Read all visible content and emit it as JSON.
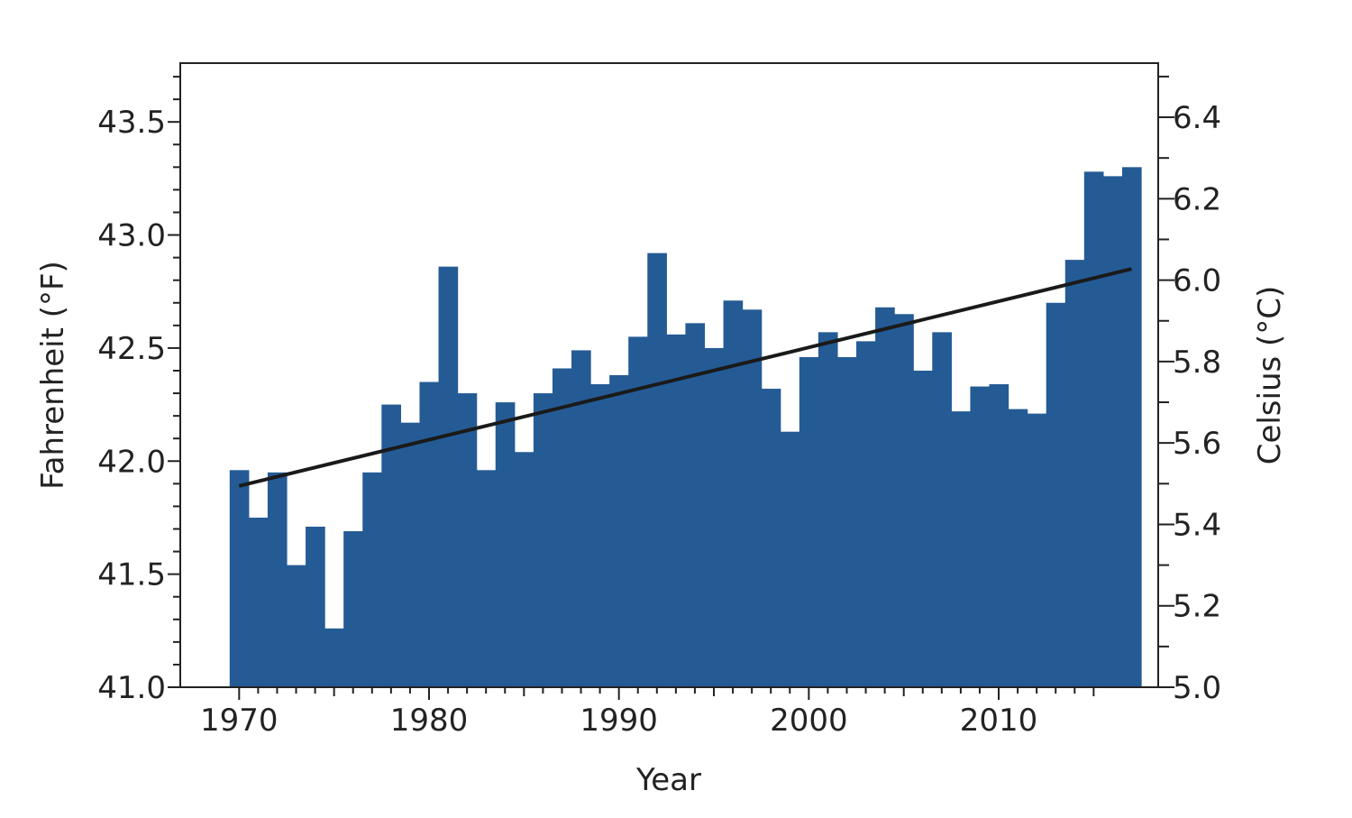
{
  "chart_data": {
    "type": "bar",
    "xlabel": "Year",
    "ylabel": "Fahrenheit  (°F)",
    "y2label": "Celsius  (°C)",
    "bar_color": "#245b95",
    "trend_color": "#1a1a1a",
    "x_tick_labels": [
      "1970",
      "1980",
      "1990",
      "2000",
      "2010"
    ],
    "x_ticks": [
      1970,
      1980,
      1990,
      2000,
      2010
    ],
    "xlim": [
      1966.9,
      2018.4
    ],
    "y_tick_labels": [
      "41.0",
      "41.5",
      "42.0",
      "42.5",
      "43.0",
      "43.5"
    ],
    "y_ticks": [
      41.0,
      41.5,
      42.0,
      42.5,
      43.0,
      43.5
    ],
    "ylim": [
      41.0,
      43.76
    ],
    "y2_tick_labels": [
      "5.0",
      "5.2",
      "5.4",
      "5.6",
      "5.8",
      "6.0",
      "6.2",
      "6.4"
    ],
    "y2_ticks": [
      5.0,
      5.2,
      5.4,
      5.6,
      5.8,
      6.0,
      6.2,
      6.4
    ],
    "y2lim": [
      5.0,
      6.533
    ],
    "grid": false,
    "legend": "none",
    "years": [
      1970,
      1971,
      1972,
      1973,
      1974,
      1975,
      1976,
      1977,
      1978,
      1979,
      1980,
      1981,
      1982,
      1983,
      1984,
      1985,
      1986,
      1987,
      1988,
      1989,
      1990,
      1991,
      1992,
      1993,
      1994,
      1995,
      1996,
      1997,
      1998,
      1999,
      2000,
      2001,
      2002,
      2003,
      2004,
      2005,
      2006,
      2007,
      2008,
      2009,
      2010,
      2011,
      2012,
      2013,
      2014,
      2015,
      2016,
      2017
    ],
    "values": [
      41.96,
      41.75,
      41.95,
      41.54,
      41.71,
      41.26,
      41.69,
      41.95,
      42.25,
      42.17,
      42.35,
      42.86,
      42.3,
      41.96,
      42.26,
      42.04,
      42.3,
      42.41,
      42.49,
      42.34,
      42.38,
      42.55,
      42.92,
      42.56,
      42.61,
      42.5,
      42.71,
      42.67,
      42.32,
      42.13,
      42.46,
      42.57,
      42.46,
      42.53,
      42.68,
      42.65,
      42.4,
      42.57,
      42.22,
      42.33,
      42.34,
      42.23,
      42.21,
      42.7,
      42.89,
      43.28,
      43.26,
      43.3
    ],
    "trend": {
      "x": [
        1970,
        2017
      ],
      "y": [
        41.89,
        42.85
      ]
    }
  }
}
